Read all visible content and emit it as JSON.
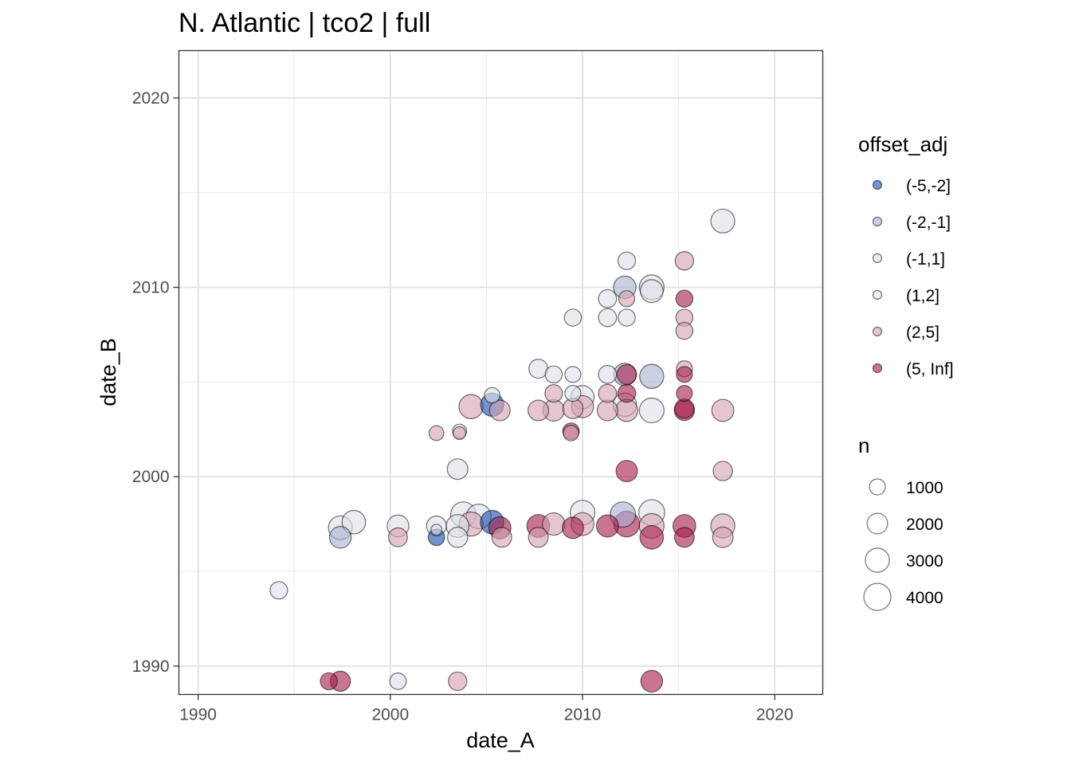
{
  "chart_data": {
    "type": "scatter",
    "title": "N. Atlantic | tco2 | full",
    "xlabel": "date_A",
    "ylabel": "date_B",
    "xlim": [
      1989,
      2022.5
    ],
    "ylim": [
      1988.5,
      2022.5
    ],
    "x_ticks": [
      1990,
      2000,
      2010,
      2020
    ],
    "y_ticks": [
      1990,
      2000,
      2010,
      2020
    ],
    "grid": true,
    "legend_position": "right",
    "color_legend": {
      "title": "offset_adj",
      "levels": [
        "(-5,-2]",
        "(-2,-1]",
        "(-1,1]",
        "(1,2]",
        "(2,5]",
        "(5, Inf]"
      ],
      "colors": [
        "#1f4fb0",
        "#aab2d2",
        "#dfe0e8",
        "#eee3e6",
        "#d5a3b1",
        "#a8204e"
      ]
    },
    "size_legend": {
      "title": "n",
      "values": [
        1000,
        2000,
        3000,
        4000
      ]
    },
    "points": [
      {
        "x": 1994.2,
        "y": 1994.0,
        "n": 1300,
        "offset": "(-1,1]"
      },
      {
        "x": 1996.8,
        "y": 1989.2,
        "n": 1200,
        "offset": "(5, Inf]"
      },
      {
        "x": 1997.4,
        "y": 1989.2,
        "n": 1900,
        "offset": "(5, Inf]"
      },
      {
        "x": 2000.4,
        "y": 1989.2,
        "n": 1100,
        "offset": "(-1,1]"
      },
      {
        "x": 2003.5,
        "y": 1989.2,
        "n": 1500,
        "offset": "(2,5]"
      },
      {
        "x": 2013.6,
        "y": 1989.2,
        "n": 2300,
        "offset": "(5, Inf]"
      },
      {
        "x": 1997.4,
        "y": 1996.8,
        "n": 2300,
        "offset": "(-2,-1]"
      },
      {
        "x": 1997.4,
        "y": 1997.3,
        "n": 2900,
        "offset": "(-1,1]"
      },
      {
        "x": 1998.1,
        "y": 1997.6,
        "n": 2800,
        "offset": "(-1,1]"
      },
      {
        "x": 2000.4,
        "y": 1997.4,
        "n": 2300,
        "offset": "(-1,1]"
      },
      {
        "x": 2000.4,
        "y": 1996.8,
        "n": 1600,
        "offset": "(2,5]"
      },
      {
        "x": 2002.4,
        "y": 1996.8,
        "n": 1100,
        "offset": "(-5,-2]"
      },
      {
        "x": 2002.4,
        "y": 1997.4,
        "n": 1800,
        "offset": "(-1,1]"
      },
      {
        "x": 2002.4,
        "y": 1997.2,
        "n": 300,
        "offset": "(-1,1]"
      },
      {
        "x": 2003.5,
        "y": 1996.8,
        "n": 1900,
        "offset": "(-1,1]"
      },
      {
        "x": 2003.5,
        "y": 1997.4,
        "n": 2600,
        "offset": "(-1,1]"
      },
      {
        "x": 2003.8,
        "y": 1998.0,
        "n": 3400,
        "offset": "(-1,1]"
      },
      {
        "x": 2004.6,
        "y": 1997.9,
        "n": 3200,
        "offset": "(-1,1]"
      },
      {
        "x": 2004.2,
        "y": 1997.5,
        "n": 3000,
        "offset": "(2,5]"
      },
      {
        "x": 2005.3,
        "y": 1997.6,
        "n": 2800,
        "offset": "(-5,-2]"
      },
      {
        "x": 2005.7,
        "y": 1997.3,
        "n": 2400,
        "offset": "(5, Inf]"
      },
      {
        "x": 2005.8,
        "y": 1996.8,
        "n": 1800,
        "offset": "(2,5]"
      },
      {
        "x": 2007.7,
        "y": 1997.4,
        "n": 2600,
        "offset": "(5, Inf]"
      },
      {
        "x": 2007.7,
        "y": 1996.8,
        "n": 1800,
        "offset": "(2,5]"
      },
      {
        "x": 2008.5,
        "y": 1997.5,
        "n": 2500,
        "offset": "(2,5]"
      },
      {
        "x": 2009.5,
        "y": 1997.3,
        "n": 2200,
        "offset": "(5, Inf]"
      },
      {
        "x": 2010.0,
        "y": 1997.5,
        "n": 2600,
        "offset": "(2,5]"
      },
      {
        "x": 2010.0,
        "y": 1998.1,
        "n": 3200,
        "offset": "(-1,1]"
      },
      {
        "x": 2011.3,
        "y": 1997.4,
        "n": 2400,
        "offset": "(5, Inf]"
      },
      {
        "x": 2012.1,
        "y": 1998.0,
        "n": 3400,
        "offset": "(-2,-1]"
      },
      {
        "x": 2012.3,
        "y": 1997.5,
        "n": 3500,
        "offset": "(5, Inf]"
      },
      {
        "x": 2013.6,
        "y": 1998.1,
        "n": 3600,
        "offset": "(-1,1]"
      },
      {
        "x": 2013.6,
        "y": 1997.4,
        "n": 3200,
        "offset": "(2,5]"
      },
      {
        "x": 2013.6,
        "y": 1996.8,
        "n": 2800,
        "offset": "(5, Inf]"
      },
      {
        "x": 2015.3,
        "y": 1997.4,
        "n": 2600,
        "offset": "(5, Inf]"
      },
      {
        "x": 2015.3,
        "y": 1996.8,
        "n": 1800,
        "offset": "(5, Inf]"
      },
      {
        "x": 2017.3,
        "y": 1997.4,
        "n": 3000,
        "offset": "(2,5]"
      },
      {
        "x": 2017.3,
        "y": 1996.8,
        "n": 2000,
        "offset": "(2,5]"
      },
      {
        "x": 2002.4,
        "y": 2002.3,
        "n": 800,
        "offset": "(2,5]"
      },
      {
        "x": 2003.6,
        "y": 2002.4,
        "n": 700,
        "offset": "(-1,1]"
      },
      {
        "x": 2003.6,
        "y": 2002.3,
        "n": 500,
        "offset": "(2,5]"
      },
      {
        "x": 2003.5,
        "y": 2000.4,
        "n": 2000,
        "offset": "(-1,1]"
      },
      {
        "x": 2004.2,
        "y": 2003.7,
        "n": 3000,
        "offset": "(2,5]"
      },
      {
        "x": 2005.3,
        "y": 2004.3,
        "n": 900,
        "offset": "(-1,1]"
      },
      {
        "x": 2005.3,
        "y": 2003.8,
        "n": 2700,
        "offset": "(-5,-2]"
      },
      {
        "x": 2005.7,
        "y": 2003.5,
        "n": 2000,
        "offset": "(2,5]"
      },
      {
        "x": 2007.7,
        "y": 2005.7,
        "n": 1600,
        "offset": "(-1,1]"
      },
      {
        "x": 2007.7,
        "y": 2003.5,
        "n": 2000,
        "offset": "(2,5]"
      },
      {
        "x": 2008.5,
        "y": 2005.4,
        "n": 1200,
        "offset": "(-1,1]"
      },
      {
        "x": 2008.5,
        "y": 2004.4,
        "n": 1300,
        "offset": "(2,5]"
      },
      {
        "x": 2008.5,
        "y": 2003.5,
        "n": 2200,
        "offset": "(2,5]"
      },
      {
        "x": 2009.5,
        "y": 2008.4,
        "n": 1200,
        "offset": "(-1,1]"
      },
      {
        "x": 2009.5,
        "y": 2005.4,
        "n": 1000,
        "offset": "(-1,1]"
      },
      {
        "x": 2009.5,
        "y": 2004.4,
        "n": 1000,
        "offset": "(-1,1]"
      },
      {
        "x": 2009.5,
        "y": 2003.6,
        "n": 1900,
        "offset": "(2,5]"
      },
      {
        "x": 2009.4,
        "y": 2002.4,
        "n": 1100,
        "offset": "(5, Inf]"
      },
      {
        "x": 2009.4,
        "y": 2002.3,
        "n": 900,
        "offset": "(2,5]"
      },
      {
        "x": 2010.0,
        "y": 2004.2,
        "n": 2700,
        "offset": "(-1,1]"
      },
      {
        "x": 2010.0,
        "y": 2003.7,
        "n": 2400,
        "offset": "(2,5]"
      },
      {
        "x": 2011.3,
        "y": 2009.4,
        "n": 1400,
        "offset": "(-1,1]"
      },
      {
        "x": 2011.3,
        "y": 2008.4,
        "n": 1400,
        "offset": "(-1,1]"
      },
      {
        "x": 2011.3,
        "y": 2005.4,
        "n": 1400,
        "offset": "(-1,1]"
      },
      {
        "x": 2011.3,
        "y": 2004.4,
        "n": 1400,
        "offset": "(2,5]"
      },
      {
        "x": 2011.3,
        "y": 2003.5,
        "n": 2000,
        "offset": "(2,5]"
      },
      {
        "x": 2012.3,
        "y": 2011.4,
        "n": 1300,
        "offset": "(-1,1]"
      },
      {
        "x": 2012.2,
        "y": 2010.0,
        "n": 2500,
        "offset": "(-2,-1]"
      },
      {
        "x": 2012.3,
        "y": 2009.4,
        "n": 1000,
        "offset": "(2,5]"
      },
      {
        "x": 2012.3,
        "y": 2008.4,
        "n": 1200,
        "offset": "(-1,1]"
      },
      {
        "x": 2012.2,
        "y": 2005.4,
        "n": 2500,
        "offset": "(-2,-1]"
      },
      {
        "x": 2012.3,
        "y": 2005.4,
        "n": 1800,
        "offset": "(5, Inf]"
      },
      {
        "x": 2012.3,
        "y": 2004.4,
        "n": 1400,
        "offset": "(5, Inf]"
      },
      {
        "x": 2012.2,
        "y": 2003.8,
        "n": 2800,
        "offset": "(-1,1]"
      },
      {
        "x": 2012.3,
        "y": 2003.5,
        "n": 2400,
        "offset": "(2,5]"
      },
      {
        "x": 2012.3,
        "y": 2000.3,
        "n": 2200,
        "offset": "(5, Inf]"
      },
      {
        "x": 2013.6,
        "y": 2010.0,
        "n": 3200,
        "offset": "(-1,1]"
      },
      {
        "x": 2013.6,
        "y": 2009.8,
        "n": 2600,
        "offset": "(-1,1]"
      },
      {
        "x": 2013.6,
        "y": 2005.3,
        "n": 3000,
        "offset": "(-2,-1]"
      },
      {
        "x": 2013.6,
        "y": 2003.5,
        "n": 3200,
        "offset": "(-1,1]"
      },
      {
        "x": 2015.3,
        "y": 2011.4,
        "n": 1500,
        "offset": "(2,5]"
      },
      {
        "x": 2015.3,
        "y": 2009.4,
        "n": 1200,
        "offset": "(5, Inf]"
      },
      {
        "x": 2015.3,
        "y": 2008.4,
        "n": 1200,
        "offset": "(2,5]"
      },
      {
        "x": 2015.3,
        "y": 2007.7,
        "n": 1200,
        "offset": "(2,5]"
      },
      {
        "x": 2015.3,
        "y": 2005.7,
        "n": 1000,
        "offset": "(2,5]"
      },
      {
        "x": 2015.3,
        "y": 2005.4,
        "n": 1000,
        "offset": "(5, Inf]"
      },
      {
        "x": 2015.3,
        "y": 2004.4,
        "n": 1000,
        "offset": "(5, Inf]"
      },
      {
        "x": 2015.3,
        "y": 2003.6,
        "n": 1700,
        "offset": "(5, Inf]"
      },
      {
        "x": 2015.3,
        "y": 2003.5,
        "n": 1900,
        "offset": "(5, Inf]"
      },
      {
        "x": 2017.3,
        "y": 2013.5,
        "n": 2900,
        "offset": "(-1,1]"
      },
      {
        "x": 2017.3,
        "y": 2003.5,
        "n": 2400,
        "offset": "(2,5]"
      },
      {
        "x": 2017.3,
        "y": 2000.3,
        "n": 1700,
        "offset": "(2,5]"
      }
    ]
  }
}
